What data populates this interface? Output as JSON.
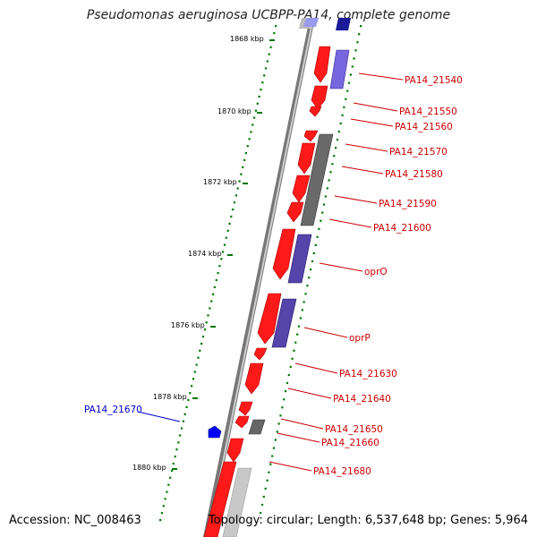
{
  "title": "Pseudomonas aeruginosa UCBPP-PA14, complete genome",
  "footer": {
    "accession": "Accession: NC_008463",
    "summary": "Topology: circular; Length: 6,537,648 bp; Genes: 5,964"
  },
  "colors": {
    "forward_gene": "#ff0000",
    "reverse_gene_blue": "#6655cc",
    "reverse_gene_gray": "#666666",
    "pseudo_gray": "#cccccc",
    "tick": "#007700",
    "label_red": "#cc0000",
    "label_blue": "#0000cc"
  },
  "ruler_labels": [
    "1868 kbp",
    "1870 kbp",
    "1872 kbp",
    "1874 kbp",
    "1876 kbp",
    "1878 kbp",
    "1880 kbp"
  ],
  "gene_labels": [
    {
      "text": "PA14_21540",
      "kind": "red"
    },
    {
      "text": "PA14_21550",
      "kind": "red"
    },
    {
      "text": "PA14_21560",
      "kind": "red"
    },
    {
      "text": "PA14_21570",
      "kind": "red"
    },
    {
      "text": "PA14_21580",
      "kind": "red"
    },
    {
      "text": "PA14_21590",
      "kind": "red"
    },
    {
      "text": "PA14_21600",
      "kind": "red"
    },
    {
      "text": "oprO",
      "kind": "red"
    },
    {
      "text": "oprP",
      "kind": "red"
    },
    {
      "text": "PA14_21630",
      "kind": "red"
    },
    {
      "text": "PA14_21640",
      "kind": "red"
    },
    {
      "text": "PA14_21650",
      "kind": "red"
    },
    {
      "text": "PA14_21660",
      "kind": "red"
    },
    {
      "text": "PA14_21680",
      "kind": "red"
    },
    {
      "text": "PA14_21670",
      "kind": "blue"
    }
  ]
}
